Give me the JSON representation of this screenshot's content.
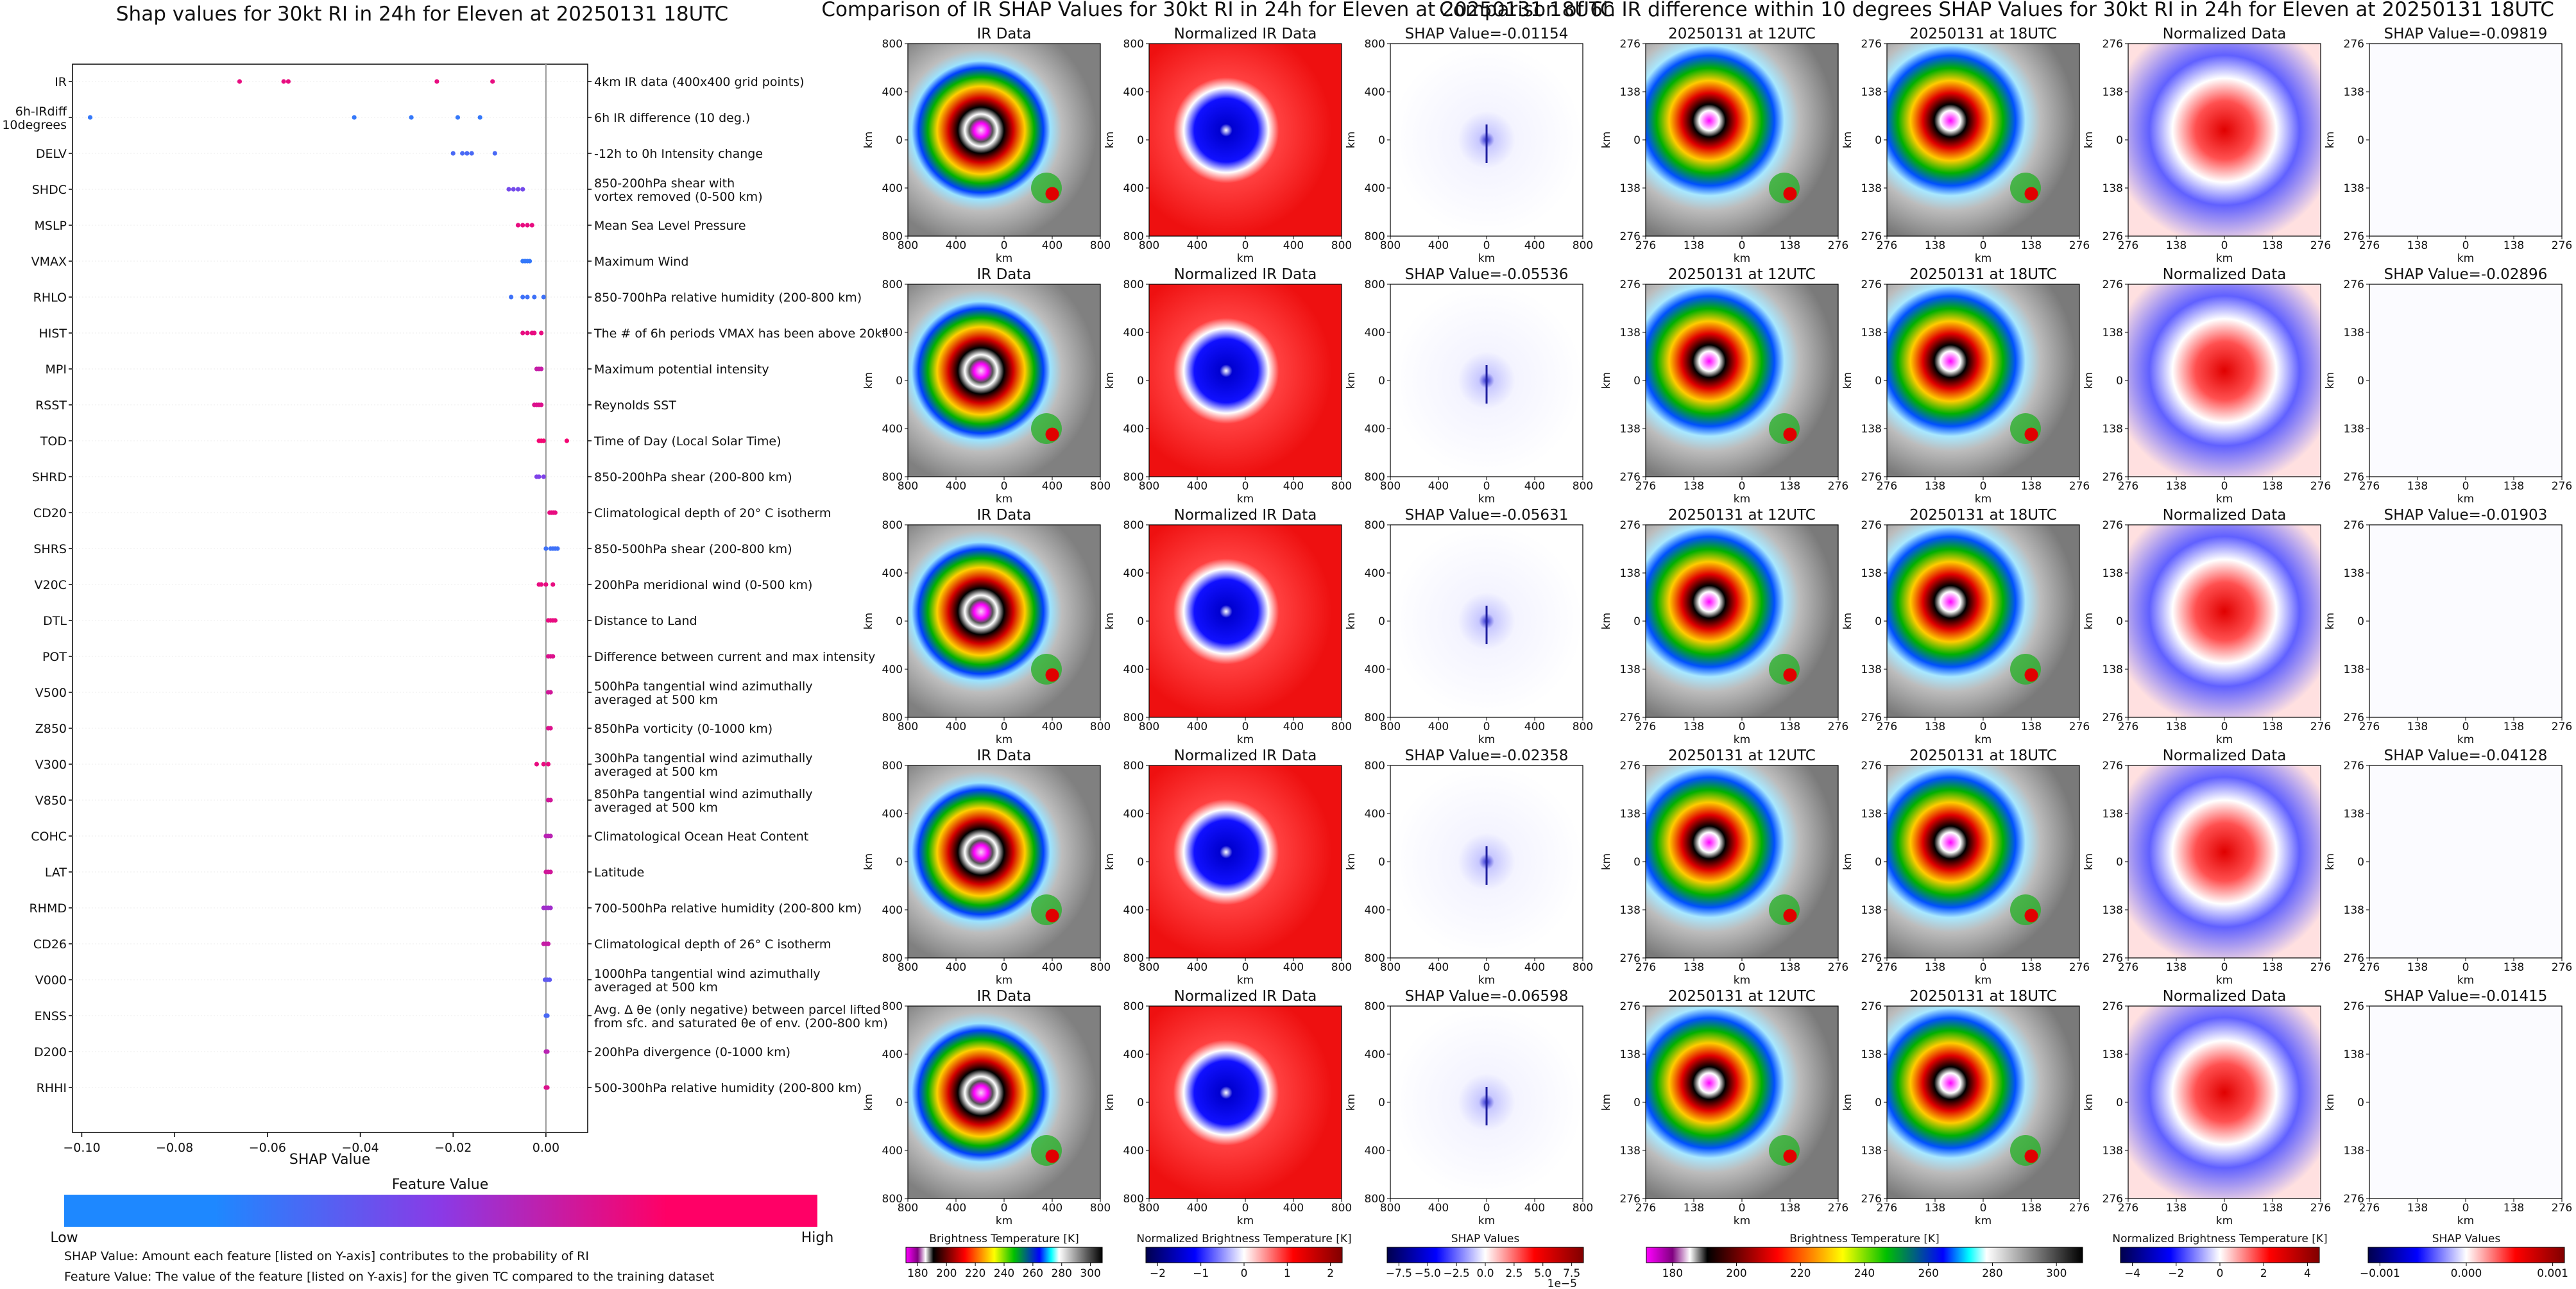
{
  "figure_titles": {
    "shap_summary": "Shap values for 30kt RI in 24h for Eleven at 20250131 18UTC",
    "ir_comparison": "Comparison of IR SHAP Values for 30kt RI in 24h for Eleven at 20250131 18UTC",
    "ird_comparison": "Comparison of 6h IR difference within 10 degrees SHAP Values for 30kt RI in 24h for Eleven at 20250131 18UTC"
  },
  "panel_titles": {
    "ir": "IR Data",
    "ir_norm": "Normalized IR Data",
    "d12": "20250131 at 12UTC",
    "d18": "20250131 at 18UTC",
    "d_norm": "Normalized Data"
  },
  "shap_prefix": "SHAP Value=",
  "ir_shap_values": [
    "-0.01154",
    "-0.05536",
    "-0.05631",
    "-0.02358",
    "-0.06598"
  ],
  "ird_shap_values": [
    "-0.09819",
    "-0.02896",
    "-0.01903",
    "-0.04128",
    "-0.01415"
  ],
  "axis_km": "km",
  "km_ticks_800": [
    "800",
    "400",
    "0",
    "400",
    "800"
  ],
  "km_ticks_276": [
    "276",
    "138",
    "0",
    "138",
    "276"
  ],
  "colorbars": {
    "bt": {
      "label": "Brightness Temperature [K]",
      "ticks": [
        "180",
        "200",
        "220",
        "240",
        "260",
        "280",
        "300"
      ]
    },
    "bt_norm": {
      "label": "Normalized Brightness Temperature [K]",
      "ticks": [
        "−2",
        "−1",
        "0",
        "1",
        "2"
      ]
    },
    "shap": {
      "label": "SHAP Values",
      "ticks": [
        "−7.5",
        "−5.0",
        "−2.5",
        "0.0",
        "2.5",
        "5.0",
        "7.5"
      ],
      "exponent": "1e−5"
    },
    "bt2": {
      "label": "Brightness Temperature [K]",
      "ticks": [
        "180",
        "200",
        "220",
        "240",
        "260",
        "280",
        "300"
      ]
    },
    "bt_norm2": {
      "label": "Normalized Brightness Temperature [K]",
      "ticks": [
        "−4",
        "−2",
        "0",
        "2",
        "4"
      ]
    },
    "shap2": {
      "label": "SHAP Values",
      "ticks": [
        "−0.001",
        "0.000",
        "0.001"
      ]
    }
  },
  "feature_colorbar": {
    "title": "Feature Value",
    "low": "Low",
    "high": "High"
  },
  "notes": [
    "SHAP Value: Amount each feature [listed on Y-axis] contributes to the probability of RI",
    "Feature Value: The value of the feature [listed on Y-axis] for the given TC compared to the training dataset"
  ],
  "colors": {
    "low": "#1e88ff",
    "mid": "#8a3ae6",
    "high": "#ff0066",
    "zero_line": "#999999"
  },
  "chart_data": {
    "type": "scatter",
    "title": "Shap values for 30kt RI in 24h for Eleven at 20250131 18UTC",
    "xlabel": "SHAP Value",
    "ylabel": "",
    "xlim": [
      -0.102,
      0.009
    ],
    "x_ticks": [
      "−0.10",
      "−0.08",
      "−0.06",
      "−0.04",
      "−0.02",
      "0.00"
    ],
    "x_tick_values": [
      -0.1,
      -0.08,
      -0.06,
      -0.04,
      -0.02,
      0.0
    ],
    "grid": false,
    "features": [
      {
        "name": "IR",
        "desc": [
          "4km IR data (400x400 grid points)"
        ],
        "points": [
          [
            -0.066,
            0.9
          ],
          [
            -0.0565,
            0.9
          ],
          [
            -0.0555,
            0.9
          ],
          [
            -0.0235,
            0.9
          ],
          [
            -0.0115,
            0.9
          ]
        ]
      },
      {
        "name": "6h-IRdiff\n10degrees",
        "desc": [
          "6h IR difference (10 deg.)"
        ],
        "points": [
          [
            -0.0982,
            0.1
          ],
          [
            -0.0413,
            0.1
          ],
          [
            -0.029,
            0.1
          ],
          [
            -0.019,
            0.1
          ],
          [
            -0.0142,
            0.1
          ]
        ]
      },
      {
        "name": "DELV",
        "desc": [
          "-12h to 0h Intensity change"
        ],
        "points": [
          [
            -0.02,
            0.2
          ],
          [
            -0.018,
            0.2
          ],
          [
            -0.017,
            0.2
          ],
          [
            -0.016,
            0.2
          ],
          [
            -0.011,
            0.2
          ]
        ]
      },
      {
        "name": "SHDC",
        "desc": [
          "850-200hPa shear with",
          "vortex removed (0-500 km)"
        ],
        "points": [
          [
            -0.008,
            0.4
          ],
          [
            -0.007,
            0.4
          ],
          [
            -0.006,
            0.4
          ],
          [
            -0.005,
            0.4
          ]
        ]
      },
      {
        "name": "MSLP",
        "desc": [
          "Mean Sea Level Pressure"
        ],
        "points": [
          [
            -0.006,
            0.9
          ],
          [
            -0.005,
            0.9
          ],
          [
            -0.004,
            0.9
          ],
          [
            -0.003,
            0.9
          ]
        ]
      },
      {
        "name": "VMAX",
        "desc": [
          "Maximum Wind"
        ],
        "points": [
          [
            -0.005,
            0.1
          ],
          [
            -0.0045,
            0.1
          ],
          [
            -0.004,
            0.1
          ],
          [
            -0.0035,
            0.1
          ]
        ]
      },
      {
        "name": "RHLO",
        "desc": [
          "850-700hPa relative humidity (200-800 km)"
        ],
        "points": [
          [
            -0.0075,
            0.15
          ],
          [
            -0.005,
            0.15
          ],
          [
            -0.004,
            0.15
          ],
          [
            -0.0025,
            0.15
          ],
          [
            -0.0005,
            0.15
          ]
        ]
      },
      {
        "name": "HIST",
        "desc": [
          "The # of 6h periods VMAX has been above 20kt"
        ],
        "points": [
          [
            -0.005,
            0.9
          ],
          [
            -0.004,
            0.9
          ],
          [
            -0.003,
            0.9
          ],
          [
            -0.0025,
            0.9
          ],
          [
            -0.001,
            0.9
          ]
        ]
      },
      {
        "name": "MPI",
        "desc": [
          "Maximum potential intensity"
        ],
        "points": [
          [
            -0.002,
            0.75
          ],
          [
            -0.0015,
            0.75
          ],
          [
            -0.001,
            0.75
          ]
        ]
      },
      {
        "name": "RSST",
        "desc": [
          "Reynolds SST"
        ],
        "points": [
          [
            -0.0025,
            0.85
          ],
          [
            -0.002,
            0.85
          ],
          [
            -0.0015,
            0.85
          ],
          [
            -0.001,
            0.85
          ]
        ]
      },
      {
        "name": "TOD",
        "desc": [
          "Time of Day (Local Solar Time)"
        ],
        "points": [
          [
            -0.0015,
            0.95
          ],
          [
            -0.001,
            0.95
          ],
          [
            -0.0005,
            0.95
          ],
          [
            0.0045,
            0.95
          ]
        ]
      },
      {
        "name": "SHRD",
        "desc": [
          "850-200hPa shear (200-800 km)"
        ],
        "points": [
          [
            -0.002,
            0.45
          ],
          [
            -0.0015,
            0.45
          ],
          [
            -0.0005,
            0.45
          ]
        ]
      },
      {
        "name": "CD20",
        "desc": [
          "Climatological depth of 20° C isotherm"
        ],
        "points": [
          [
            0.0008,
            0.9
          ],
          [
            0.0012,
            0.9
          ],
          [
            0.0016,
            0.9
          ],
          [
            0.002,
            0.9
          ]
        ]
      },
      {
        "name": "SHRS",
        "desc": [
          "850-500hPa shear (200-800 km)"
        ],
        "points": [
          [
            0.0,
            0.15
          ],
          [
            0.001,
            0.15
          ],
          [
            0.0015,
            0.15
          ],
          [
            0.002,
            0.15
          ],
          [
            0.0025,
            0.15
          ]
        ]
      },
      {
        "name": "V20C",
        "desc": [
          "200hPa meridional wind (0-500 km)"
        ],
        "points": [
          [
            -0.0015,
            0.9
          ],
          [
            -0.001,
            0.9
          ],
          [
            0.0,
            0.9
          ],
          [
            0.0015,
            0.9
          ]
        ]
      },
      {
        "name": "DTL",
        "desc": [
          "Distance to Land"
        ],
        "points": [
          [
            0.0005,
            0.9
          ],
          [
            0.001,
            0.9
          ],
          [
            0.0015,
            0.9
          ],
          [
            0.002,
            0.9
          ]
        ]
      },
      {
        "name": "POT",
        "desc": [
          "Difference between current and max intensity"
        ],
        "points": [
          [
            0.0005,
            0.85
          ],
          [
            0.001,
            0.85
          ],
          [
            0.0015,
            0.85
          ]
        ]
      },
      {
        "name": "V500",
        "desc": [
          "500hPa tangential wind azimuthally",
          "averaged at 500 km"
        ],
        "points": [
          [
            0.0005,
            0.8
          ],
          [
            0.001,
            0.8
          ]
        ]
      },
      {
        "name": "Z850",
        "desc": [
          "850hPa vorticity (0-1000 km)"
        ],
        "points": [
          [
            0.0005,
            0.85
          ],
          [
            0.001,
            0.85
          ]
        ]
      },
      {
        "name": "V300",
        "desc": [
          "300hPa tangential wind azimuthally",
          "averaged at 500 km"
        ],
        "points": [
          [
            -0.002,
            0.9
          ],
          [
            -0.0005,
            0.9
          ],
          [
            0.0005,
            0.9
          ]
        ]
      },
      {
        "name": "V850",
        "desc": [
          "850hPa tangential wind azimuthally",
          "averaged at 500 km"
        ],
        "points": [
          [
            0.0005,
            0.8
          ],
          [
            0.001,
            0.8
          ]
        ]
      },
      {
        "name": "COHC",
        "desc": [
          "Climatological Ocean Heat Content"
        ],
        "points": [
          [
            0.0,
            0.7
          ],
          [
            0.0005,
            0.7
          ],
          [
            0.001,
            0.7
          ]
        ]
      },
      {
        "name": "LAT",
        "desc": [
          "Latitude"
        ],
        "points": [
          [
            0.0,
            0.8
          ],
          [
            0.0005,
            0.8
          ],
          [
            0.001,
            0.8
          ]
        ]
      },
      {
        "name": "RHMD",
        "desc": [
          "700-500hPa relative humidity (200-800 km)"
        ],
        "points": [
          [
            -0.0005,
            0.6
          ],
          [
            0.0,
            0.6
          ],
          [
            0.0005,
            0.6
          ],
          [
            0.001,
            0.6
          ]
        ]
      },
      {
        "name": "CD26",
        "desc": [
          "Climatological depth of 26° C isotherm"
        ],
        "points": [
          [
            -0.0005,
            0.75
          ],
          [
            0.0,
            0.75
          ],
          [
            0.0005,
            0.75
          ]
        ]
      },
      {
        "name": "V000",
        "desc": [
          "1000hPa tangential wind azimuthally",
          "averaged at 500 km"
        ],
        "points": [
          [
            -0.0002,
            0.3
          ],
          [
            0.0003,
            0.3
          ],
          [
            0.0008,
            0.3
          ]
        ]
      },
      {
        "name": "ENSS",
        "desc": [
          "Avg. Δ θe (only negative) between parcel lifted",
          "from sfc. and saturated θe of env. (200-800 km)"
        ],
        "points": [
          [
            0.0,
            0.2
          ],
          [
            0.0003,
            0.2
          ]
        ]
      },
      {
        "name": "D200",
        "desc": [
          "200hPa divergence (0-1000 km)"
        ],
        "points": [
          [
            0.0,
            0.7
          ],
          [
            0.0003,
            0.7
          ]
        ]
      },
      {
        "name": "RHHI",
        "desc": [
          "500-300hPa relative humidity (200-800 km)"
        ],
        "points": [
          [
            0.0,
            0.85
          ],
          [
            0.0003,
            0.85
          ]
        ]
      }
    ]
  }
}
